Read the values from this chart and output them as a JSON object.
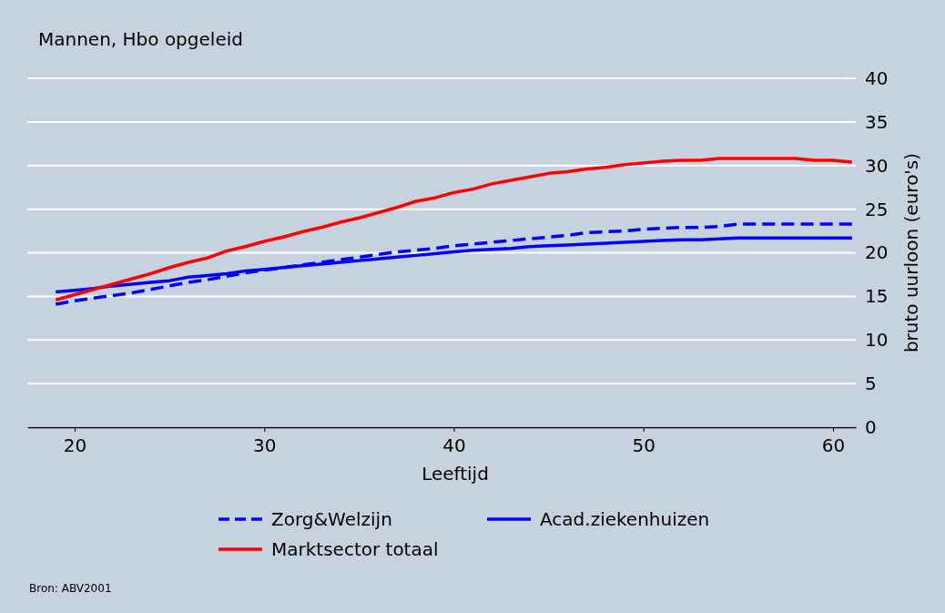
{
  "chart_data": {
    "type": "line",
    "title": "Mannen, Hbo opgeleid",
    "xlabel": "Leeftijd",
    "ylabel": "bruto uurloon (euro's)",
    "x": [
      19,
      20,
      21,
      22,
      23,
      24,
      25,
      26,
      27,
      28,
      29,
      30,
      31,
      32,
      33,
      34,
      35,
      36,
      37,
      38,
      39,
      40,
      41,
      42,
      43,
      44,
      45,
      46,
      47,
      48,
      49,
      50,
      51,
      52,
      53,
      54,
      55,
      56,
      57,
      58,
      59,
      60,
      61
    ],
    "series": [
      {
        "name": "Zorg&Welzijn",
        "color": "#0000ff",
        "line_style": "dashed",
        "values": [
          14.1,
          14.5,
          14.8,
          15.1,
          15.4,
          15.8,
          16.2,
          16.6,
          16.9,
          17.3,
          17.7,
          18.0,
          18.3,
          18.6,
          18.9,
          19.2,
          19.5,
          19.8,
          20.1,
          20.3,
          20.5,
          20.8,
          21.0,
          21.2,
          21.4,
          21.6,
          21.8,
          22.0,
          22.3,
          22.4,
          22.5,
          22.7,
          22.8,
          22.9,
          22.9,
          23.0,
          23.3,
          23.3,
          23.3,
          23.3,
          23.3,
          23.3,
          23.3
        ]
      },
      {
        "name": "Acad.ziekenhuizen",
        "color": "#0000ff",
        "line_style": "solid",
        "values": [
          15.5,
          15.7,
          15.9,
          16.2,
          16.4,
          16.6,
          16.8,
          17.2,
          17.4,
          17.6,
          17.9,
          18.1,
          18.3,
          18.5,
          18.7,
          18.9,
          19.1,
          19.3,
          19.5,
          19.7,
          19.9,
          20.1,
          20.3,
          20.4,
          20.5,
          20.7,
          20.8,
          20.9,
          21.0,
          21.1,
          21.2,
          21.3,
          21.4,
          21.5,
          21.5,
          21.6,
          21.7,
          21.7,
          21.7,
          21.7,
          21.7,
          21.7,
          21.7
        ]
      },
      {
        "name": "Marktsector totaal",
        "color": "#ff0000",
        "line_style": "solid",
        "values": [
          14.6,
          15.2,
          15.8,
          16.4,
          17.0,
          17.6,
          18.3,
          18.9,
          19.4,
          20.2,
          20.7,
          21.3,
          21.8,
          22.4,
          22.9,
          23.5,
          24.0,
          24.6,
          25.2,
          25.9,
          26.3,
          26.9,
          27.3,
          27.9,
          28.3,
          28.7,
          29.1,
          29.3,
          29.6,
          29.8,
          30.1,
          30.3,
          30.5,
          30.6,
          30.6,
          30.8,
          30.8,
          30.8,
          30.8,
          30.8,
          30.6,
          30.6,
          30.4
        ]
      }
    ],
    "xlim": [
      17.5,
      61.2
    ],
    "xticks": [
      20,
      30,
      40,
      50,
      60
    ],
    "ylim": [
      0,
      40
    ],
    "yticks": [
      0,
      5,
      10,
      15,
      20,
      25,
      30,
      35,
      40
    ],
    "grid": "y",
    "legend": "bottom",
    "marker": "none",
    "annotations": [
      "Bron: ABV2001"
    ]
  }
}
